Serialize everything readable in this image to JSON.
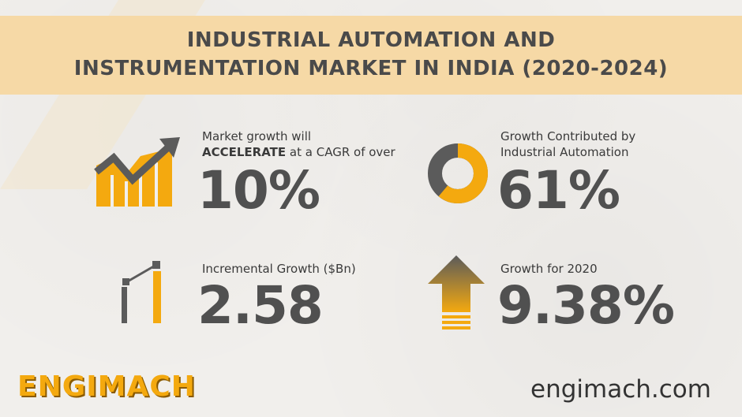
{
  "title": {
    "line1": "INDUSTRIAL AUTOMATION AND",
    "line2": "INSTRUMENTATION MARKET IN INDIA (2020-2024)"
  },
  "stats": {
    "cagr": {
      "caption_line1": "Market growth will",
      "caption_bold": "ACCELERATE",
      "caption_rest": " at a CAGR of over",
      "value": "10%",
      "icon": "growth-bars-arrow-icon"
    },
    "automation": {
      "caption_line1": "Growth Contributed by",
      "caption_line2": "Industrial Automation",
      "value": "61%",
      "icon": "donut-chart-icon",
      "share": 0.61
    },
    "incremental": {
      "caption": "Incremental Growth ($Bn)",
      "value": "2.58",
      "icon": "incremental-bars-icon"
    },
    "growth2020": {
      "caption": "Growth for 2020",
      "value": "9.38%",
      "icon": "up-arrow-icon"
    }
  },
  "footer": {
    "logo": "ENGIMACH",
    "website": "engimach.com"
  },
  "colors": {
    "accent": "#f4a90f",
    "gray": "#5b5b5b",
    "banner": "#f6d9a6",
    "text": "#505050"
  }
}
